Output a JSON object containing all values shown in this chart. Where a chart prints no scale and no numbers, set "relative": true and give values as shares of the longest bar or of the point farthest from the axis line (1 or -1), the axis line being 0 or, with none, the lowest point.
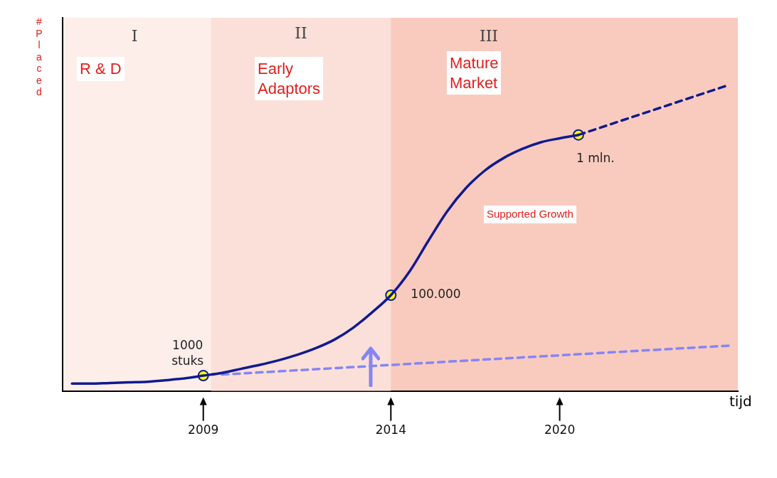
{
  "chart_data": {
    "type": "line",
    "relative": true,
    "xlabel": "tijd",
    "ylabel": "#Placed",
    "legend": false,
    "grid": false,
    "categories": [
      null,
      null,
      null,
      null,
      null,
      null,
      null,
      "2009",
      null,
      null,
      null,
      null,
      null,
      null,
      null,
      null,
      null,
      "2014",
      null,
      null,
      null,
      null,
      null,
      null,
      null,
      null,
      "2020",
      null,
      null,
      null,
      null,
      null,
      null,
      null,
      null,
      null
    ],
    "series": [
      {
        "line_style": "solid",
        "color": "#111a8e",
        "values": [
          0.024,
          0.024,
          0.026,
          0.028,
          0.03,
          0.035,
          0.041,
          0.05,
          0.059,
          0.072,
          0.085,
          0.1,
          0.118,
          0.14,
          0.168,
          0.207,
          0.257,
          0.313,
          0.391,
          0.491,
          0.587,
          0.663,
          0.72,
          0.761,
          0.791,
          0.813,
          0.826,
          0.837,
          null,
          null,
          null,
          null,
          null,
          null,
          null,
          null
        ]
      },
      {
        "line_style": "dashed",
        "color": "#111a8e",
        "values": [
          null,
          null,
          null,
          null,
          null,
          null,
          null,
          null,
          null,
          null,
          null,
          null,
          null,
          null,
          null,
          null,
          null,
          null,
          null,
          null,
          null,
          null,
          null,
          null,
          null,
          null,
          null,
          0.837,
          null,
          null,
          null,
          null,
          null,
          null,
          null,
          1
        ]
      },
      {
        "line_style": "dashed",
        "color": "#8585f5",
        "values": [
          null,
          null,
          null,
          null,
          null,
          null,
          null,
          null,
          0.0535,
          null,
          null,
          null,
          null,
          null,
          null,
          null,
          null,
          null,
          null,
          null,
          null,
          null,
          null,
          null,
          null,
          null,
          null,
          null,
          null,
          null,
          null,
          null,
          null,
          null,
          null,
          0.148
        ]
      },
      {
        "type": "scatter",
        "marker": "circle",
        "color": "#ffff00",
        "values": [
          null,
          null,
          null,
          null,
          null,
          null,
          null,
          0.05,
          null,
          null,
          null,
          null,
          null,
          null,
          null,
          null,
          null,
          0.313,
          null,
          null,
          null,
          null,
          null,
          null,
          null,
          null,
          null,
          0.837,
          null,
          null,
          null,
          null,
          null,
          null,
          null,
          null
        ]
      }
    ],
    "bands": [
      {
        "axis": "x",
        "from": "2009",
        "to": "2014",
        "label": "II",
        "color": "#fbe0d9"
      }
    ],
    "annotations": [
      {
        "text": "1000 stuks",
        "x": "2009",
        "y": 0.05
      },
      {
        "text": "100.000",
        "x": "2014",
        "y": 0.313
      },
      "I",
      "III",
      "1 mln.",
      "R & D",
      "Early Adaptors",
      "Mature Market",
      "Supported Growth"
    ]
  }
}
